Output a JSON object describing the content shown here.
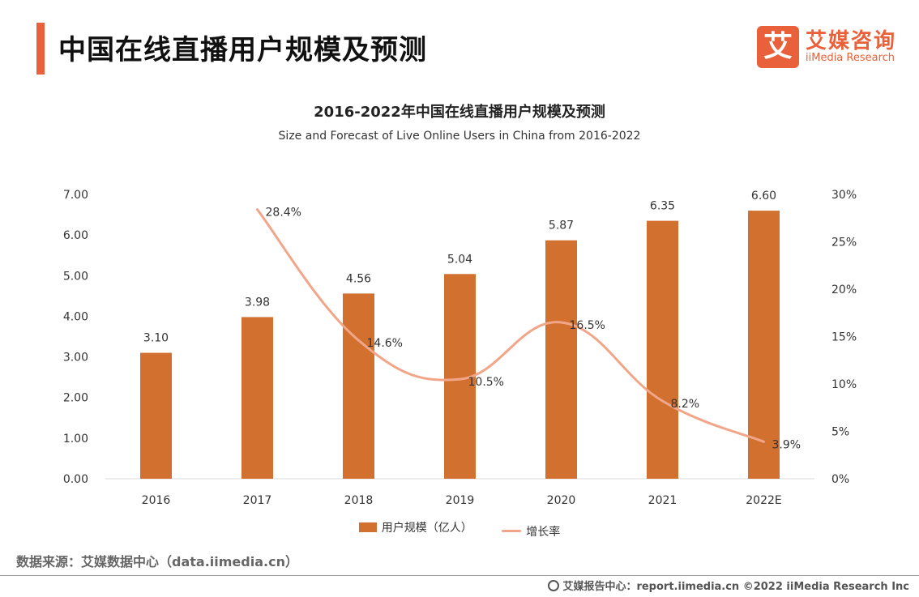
{
  "header": {
    "title": "中国在线直播用户规模及预测",
    "accent_color": "#e8613a"
  },
  "logo": {
    "mark": "艾",
    "name_cn": "艾媒咨询",
    "name_en": "iiMedia Research"
  },
  "chart_data": {
    "type": "bar+line",
    "title": "2016-2022年中国在线直播用户规模及预测",
    "subtitle": "Size and Forecast of Live Online Users in China from 2016-2022",
    "categories": [
      "2016",
      "2017",
      "2018",
      "2019",
      "2020",
      "2021",
      "2022E"
    ],
    "y_left": {
      "min": 0,
      "max": 7,
      "ticks": [
        "0.00",
        "1.00",
        "2.00",
        "3.00",
        "4.00",
        "5.00",
        "6.00",
        "7.00"
      ]
    },
    "y_right": {
      "min": 0,
      "max": 30,
      "ticks": [
        "0%",
        "5%",
        "10%",
        "15%",
        "20%",
        "25%",
        "30%"
      ]
    },
    "series": [
      {
        "name": "用户规模（亿人）",
        "type": "bar",
        "axis": "left",
        "color": "#d2702f",
        "values": [
          3.1,
          3.98,
          4.56,
          5.04,
          5.87,
          6.35,
          6.6
        ],
        "labels": [
          "3.10",
          "3.98",
          "4.56",
          "5.04",
          "5.87",
          "6.35",
          "6.60"
        ]
      },
      {
        "name": "增长率",
        "type": "line",
        "axis": "right",
        "color": "#f1a689",
        "values": [
          null,
          28.4,
          14.6,
          10.5,
          16.5,
          8.2,
          3.9
        ],
        "labels": [
          null,
          "28.4%",
          "14.6%",
          "10.5%",
          "16.5%",
          "8.2%",
          "3.9%"
        ]
      }
    ],
    "grid": false,
    "legend_position": "bottom-center"
  },
  "source": "数据来源：艾媒数据中心（data.iimedia.cn）",
  "footer": "艾媒报告中心：report.iimedia.cn   ©2022  iiMedia Research  Inc"
}
